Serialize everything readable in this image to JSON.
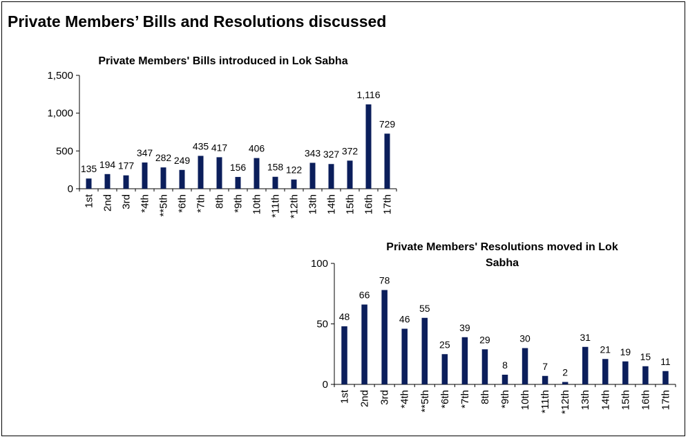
{
  "page_title": "Private Members’ Bills and Resolutions discussed",
  "colors": {
    "bar": "#0b1e5b",
    "axis": "#000000"
  },
  "chart_data": [
    {
      "type": "bar",
      "title": "Private Members' Bills introduced in Lok Sabha",
      "xlabel": "",
      "ylabel": "",
      "ylim": [
        0,
        1500
      ],
      "yticks": [
        0,
        500,
        1000,
        1500
      ],
      "ytick_labels": [
        "0",
        "500",
        "1,000",
        "1,500"
      ],
      "grid": false,
      "categories": [
        "1st",
        "2nd",
        "3rd",
        "*4th",
        "**5th",
        "*6th",
        "*7th",
        "8th",
        "*9th",
        "10th",
        "*11th",
        "*12th",
        "13th",
        "14th",
        "15th",
        "16th",
        "17th"
      ],
      "values": [
        135,
        194,
        177,
        347,
        282,
        249,
        435,
        417,
        156,
        406,
        158,
        122,
        343,
        327,
        372,
        1116,
        729
      ],
      "value_labels": [
        "135",
        "194",
        "177",
        "347",
        "282",
        "249",
        "435",
        "417",
        "156",
        "406",
        "158",
        "122",
        "343",
        "327",
        "372",
        "1,116",
        "729"
      ]
    },
    {
      "type": "bar",
      "title": "Private Members' Resolutions moved in Lok Sabha",
      "title_lines": [
        "Private Members' Resolutions moved in Lok",
        "Sabha"
      ],
      "xlabel": "",
      "ylabel": "",
      "ylim": [
        0,
        100
      ],
      "yticks": [
        0,
        50,
        100
      ],
      "ytick_labels": [
        "0",
        "50",
        "100"
      ],
      "grid": false,
      "categories": [
        "1st",
        "2nd",
        "3rd",
        "*4th",
        "**5th",
        "*6th",
        "*7th",
        "8th",
        "*9th",
        "10th",
        "*11th",
        "*12th",
        "13th",
        "14th",
        "15th",
        "16th",
        "17th"
      ],
      "values": [
        48,
        66,
        78,
        46,
        55,
        25,
        39,
        29,
        8,
        30,
        7,
        2,
        31,
        21,
        19,
        15,
        11
      ],
      "value_labels": [
        "48",
        "66",
        "78",
        "46",
        "55",
        "25",
        "39",
        "29",
        "8",
        "30",
        "7",
        "2",
        "31",
        "21",
        "19",
        "15",
        "11"
      ]
    }
  ]
}
